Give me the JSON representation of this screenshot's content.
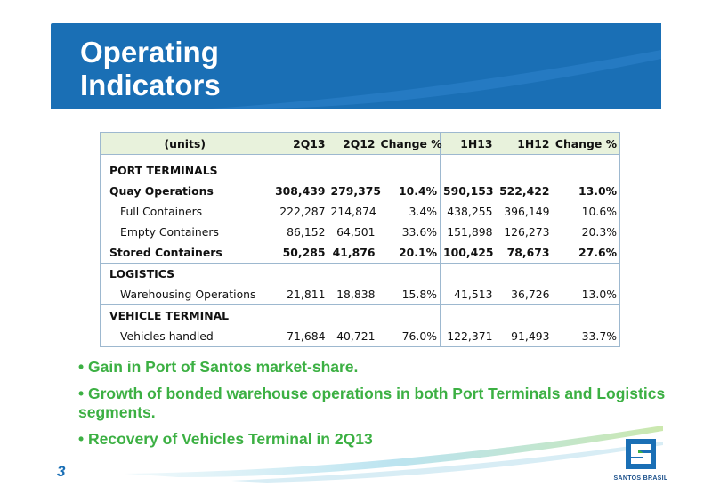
{
  "title": "Operating\nIndicators",
  "page_number": "3",
  "logo_text": "SANTOS BRASIL",
  "table": {
    "header": {
      "units": "(units)",
      "c1": "2Q13",
      "c2": "2Q12",
      "c3": "Change %",
      "c4": "1H13",
      "c5": "1H12",
      "c6": "Change %"
    },
    "port_terminals": "PORT TERMINALS",
    "quay": {
      "label": "Quay Operations",
      "v": [
        "308,439",
        "279,375",
        "10.4%",
        "590,153",
        "522,422",
        "13.0%"
      ]
    },
    "full": {
      "label": "Full Containers",
      "v": [
        "222,287",
        "214,874",
        "3.4%",
        "438,255",
        "396,149",
        "10.6%"
      ]
    },
    "empty": {
      "label": "Empty Containers",
      "v": [
        "86,152",
        "64,501",
        "33.6%",
        "151,898",
        "126,273",
        "20.3%"
      ]
    },
    "stored": {
      "label": "Stored Containers",
      "v": [
        "50,285",
        "41,876",
        "20.1%",
        "100,425",
        "78,673",
        "27.6%"
      ]
    },
    "logistics": "LOGISTICS",
    "warehousing": {
      "label": "Warehousing Operations",
      "v": [
        "21,811",
        "18,838",
        "15.8%",
        "41,513",
        "36,726",
        "13.0%"
      ]
    },
    "vehicle_terminal": "VEHICLE TERMINAL",
    "vehicles": {
      "label": "Vehicles handled",
      "v": [
        "71,684",
        "40,721",
        "76.0%",
        "122,371",
        "91,493",
        "33.7%"
      ]
    }
  },
  "bullets": [
    "• Gain in Port of Santos market-share.",
    "• Growth of  bonded warehouse operations in both Port Terminals and Logistics  segments.",
    "• Recovery of Vehicles Terminal in 2Q13"
  ],
  "colors": {
    "brand_blue": "#1a6fb5",
    "bullet_green": "#3cb043",
    "header_bg": "#e8f2dc"
  }
}
